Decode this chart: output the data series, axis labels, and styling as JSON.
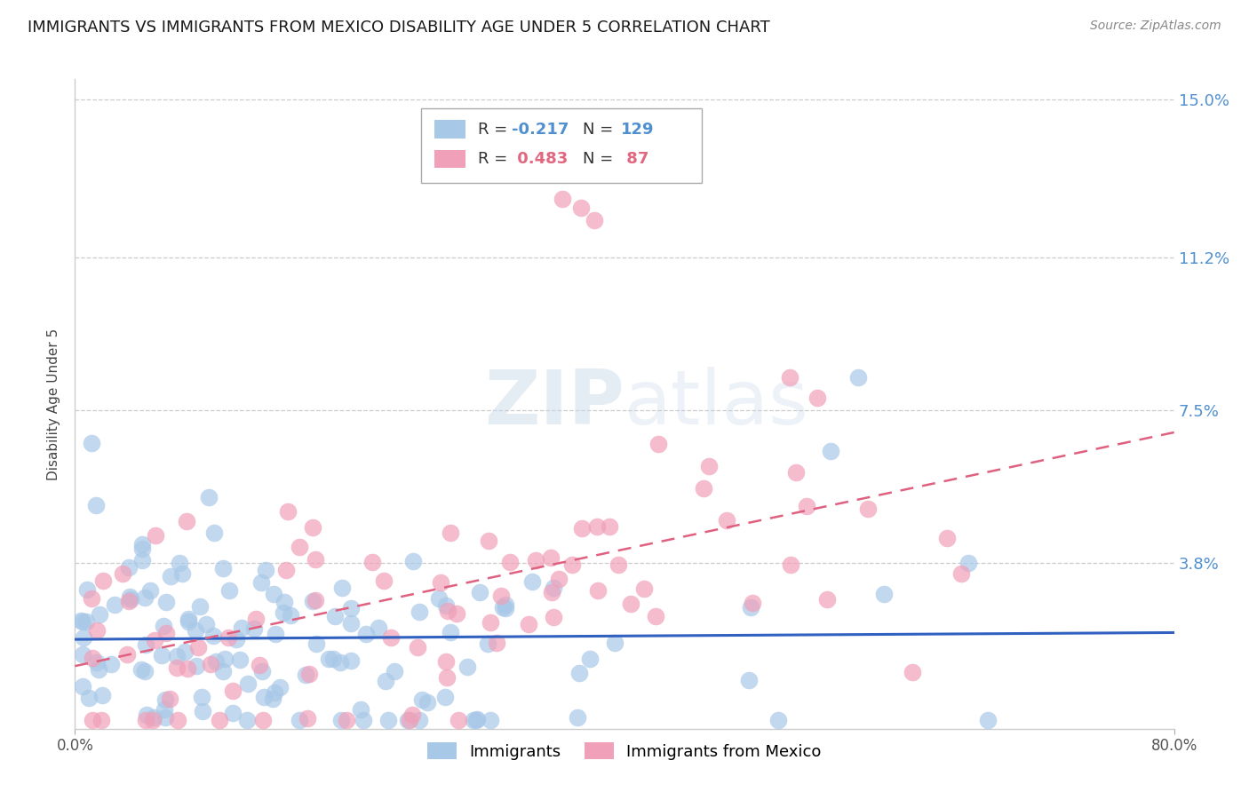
{
  "title": "IMMIGRANTS VS IMMIGRANTS FROM MEXICO DISABILITY AGE UNDER 5 CORRELATION CHART",
  "source": "Source: ZipAtlas.com",
  "ylabel": "Disability Age Under 5",
  "xlim": [
    0.0,
    0.8
  ],
  "ylim": [
    -0.002,
    0.155
  ],
  "yticks": [
    0.0,
    0.038,
    0.075,
    0.112,
    0.15
  ],
  "ytick_labels": [
    "",
    "3.8%",
    "7.5%",
    "11.2%",
    "15.0%"
  ],
  "xticks": [
    0.0,
    0.8
  ],
  "xtick_labels": [
    "0.0%",
    "80.0%"
  ],
  "series1_color": "#a8c8e8",
  "series2_color": "#f0a0b8",
  "trendline1_color": "#3060c0",
  "trendline2_color": "#e06080",
  "background_color": "#ffffff",
  "grid_color": "#cccccc",
  "title_fontsize": 13,
  "axis_label_fontsize": 11,
  "tick_label_color": "#5090d0",
  "watermark_color": "#c8d8ec",
  "R1": -0.217,
  "N1": 129,
  "R2": 0.483,
  "N2": 87,
  "seed": 7
}
